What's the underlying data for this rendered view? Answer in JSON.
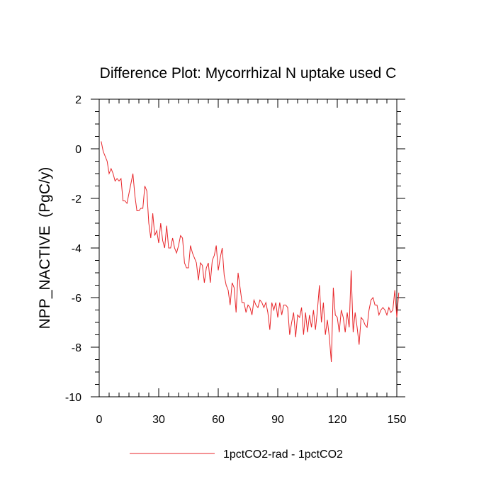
{
  "chart_data": {
    "type": "line",
    "title": "Difference Plot: Mycorrhizal N uptake used C",
    "xlabel": "",
    "ylabel": "NPP_NACTIVE  (PgC/y)",
    "xlim": [
      0,
      150
    ],
    "ylim": [
      -10,
      2
    ],
    "x_ticks": [
      0,
      30,
      60,
      90,
      120,
      150
    ],
    "y_ticks": [
      2,
      0,
      -2,
      -4,
      -6,
      -8,
      -10
    ],
    "x_tick_labels": [
      "0",
      "30",
      "60",
      "90",
      "120",
      "150"
    ],
    "y_tick_labels": [
      "2",
      "0",
      "-2",
      "-4",
      "-6",
      "-8",
      "-10"
    ],
    "grid": false,
    "legend_position": "bottom-center",
    "series": [
      {
        "name": "1pctCO2-rad - 1pctCO2",
        "color": "#e8262a",
        "x": [
          1,
          2,
          3,
          4,
          5,
          6,
          7,
          8,
          9,
          10,
          11,
          12,
          13,
          14,
          15,
          16,
          17,
          18,
          19,
          20,
          21,
          22,
          23,
          24,
          25,
          26,
          27,
          28,
          29,
          30,
          31,
          32,
          33,
          34,
          35,
          36,
          37,
          38,
          39,
          40,
          41,
          42,
          43,
          44,
          45,
          46,
          47,
          48,
          49,
          50,
          51,
          52,
          53,
          54,
          55,
          56,
          57,
          58,
          59,
          60,
          61,
          62,
          63,
          64,
          65,
          66,
          67,
          68,
          69,
          70,
          71,
          72,
          73,
          74,
          75,
          76,
          77,
          78,
          79,
          80,
          81,
          82,
          83,
          84,
          85,
          86,
          87,
          88,
          89,
          90,
          91,
          92,
          93,
          94,
          95,
          96,
          97,
          98,
          99,
          100,
          101,
          102,
          103,
          104,
          105,
          106,
          107,
          108,
          109,
          110,
          111,
          112,
          113,
          114,
          115,
          116,
          117,
          118,
          119,
          120,
          121,
          122,
          123,
          124,
          125,
          126,
          127,
          128,
          129,
          130,
          131,
          132,
          133,
          134,
          135,
          136,
          137,
          138,
          139,
          140,
          141,
          142,
          143,
          144,
          145,
          146,
          147,
          148,
          149,
          150,
          151
        ],
        "y": [
          0.3,
          -0.1,
          -0.3,
          -0.5,
          -1.0,
          -0.8,
          -1.0,
          -1.3,
          -1.2,
          -1.3,
          -1.2,
          -2.1,
          -2.1,
          -2.2,
          -1.8,
          -1.4,
          -1.0,
          -1.9,
          -2.5,
          -2.5,
          -2.4,
          -2.4,
          -1.5,
          -1.7,
          -3.0,
          -3.6,
          -2.6,
          -3.5,
          -3.3,
          -3.8,
          -3.0,
          -3.7,
          -4.0,
          -3.1,
          -4.0,
          -4.0,
          -3.6,
          -4.0,
          -4.2,
          -3.9,
          -3.5,
          -3.6,
          -4.6,
          -4.8,
          -4.8,
          -3.9,
          -4.2,
          -4.4,
          -4.6,
          -5.3,
          -4.6,
          -4.7,
          -5.4,
          -4.8,
          -4.6,
          -5.4,
          -4.5,
          -4.3,
          -3.9,
          -4.9,
          -4.4,
          -4.0,
          -5.1,
          -5.5,
          -5.7,
          -6.3,
          -5.4,
          -5.6,
          -6.6,
          -5.0,
          -5.6,
          -6.2,
          -6.2,
          -6.6,
          -6.3,
          -6.4,
          -6.7,
          -6.1,
          -6.3,
          -6.4,
          -6.1,
          -6.2,
          -6.4,
          -6.2,
          -6.6,
          -7.3,
          -6.2,
          -6.5,
          -6.2,
          -6.8,
          -6.2,
          -6.7,
          -6.3,
          -6.3,
          -6.4,
          -7.5,
          -7.0,
          -6.6,
          -7.6,
          -6.7,
          -6.8,
          -6.4,
          -7.5,
          -6.6,
          -7.4,
          -6.7,
          -7.2,
          -6.5,
          -7.3,
          -6.5,
          -5.5,
          -7.0,
          -6.2,
          -7.5,
          -6.9,
          -7.6,
          -8.6,
          -5.6,
          -6.7,
          -6.8,
          -7.4,
          -6.5,
          -6.8,
          -7.4,
          -6.6,
          -7.2,
          -4.9,
          -7.4,
          -6.6,
          -7.2,
          -7.9,
          -6.8,
          -6.9,
          -7.1,
          -7.2,
          -6.5,
          -6.1,
          -6.0,
          -6.3,
          -6.3,
          -6.7,
          -6.5,
          -6.4,
          -6.5,
          -6.7,
          -6.4,
          -6.6,
          -6.5,
          -5.7,
          -6.8,
          -5.8
        ]
      }
    ]
  }
}
